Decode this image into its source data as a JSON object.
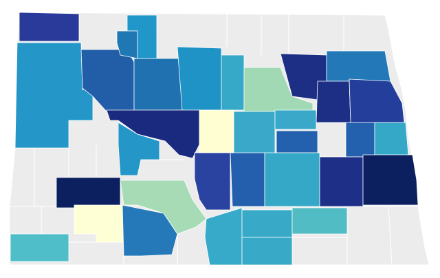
{
  "map": {
    "type": "choropleth",
    "base_color": "#ececec",
    "border_color": "#ffffff",
    "regions": [
      {
        "color": "#2a3a9a"
      },
      {
        "color": "#2596c8"
      },
      {
        "color": "#225ea8"
      },
      {
        "color": "#2196c8"
      },
      {
        "color": "#1f78b4"
      },
      {
        "color": "#2071b0"
      },
      {
        "color": "#1f93c5"
      },
      {
        "color": "#36a8c8"
      },
      {
        "color": "#a1d9b4"
      },
      {
        "color": "#1d2f85"
      },
      {
        "color": "#2379b8"
      },
      {
        "color": "#1d2f85"
      },
      {
        "color": "#243e9c"
      },
      {
        "color": "#1a2a7e"
      },
      {
        "color": "#fefed2"
      },
      {
        "color": "#3aa9c9"
      },
      {
        "color": "#3aa9c9"
      },
      {
        "color": "#2360ad"
      },
      {
        "color": "#2360ad"
      },
      {
        "color": "#35a8c8"
      },
      {
        "color": "#2596c8"
      },
      {
        "color": "#2a43a0"
      },
      {
        "color": "#235fad"
      },
      {
        "color": "#35a8c8"
      },
      {
        "color": "#1e2f88"
      },
      {
        "color": "#0c1f5e"
      },
      {
        "color": "#0c1f5e"
      },
      {
        "color": "#a6dbb5"
      },
      {
        "color": "#feffd4"
      },
      {
        "color": "#2679b8"
      },
      {
        "color": "#37a9c9"
      },
      {
        "color": "#38aac8"
      },
      {
        "color": "#38aac8"
      },
      {
        "color": "#52bcc4"
      },
      {
        "color": "#4fbec8"
      }
    ]
  }
}
